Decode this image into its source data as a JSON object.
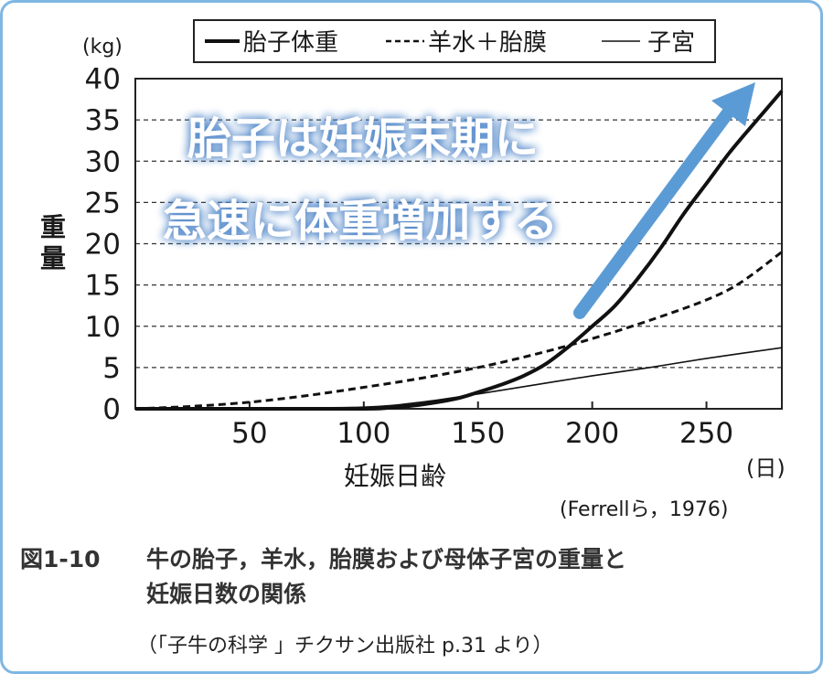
{
  "chart_data": {
    "type": "line",
    "yunit": "(kg)",
    "xunit": "(日)",
    "ylabel": "重量",
    "xlabel": "妊娠日齢",
    "xlim": [
      0,
      283
    ],
    "ylim": [
      0,
      40
    ],
    "yticks": [
      0,
      5,
      10,
      15,
      20,
      25,
      30,
      35,
      40
    ],
    "xticks": [
      50,
      100,
      150,
      200,
      250
    ],
    "grid": "horizontal dashed",
    "legend_position": "top",
    "series": [
      {
        "name": "胎子体重",
        "style": "thick-solid",
        "x": [
          0,
          50,
          100,
          110,
          125,
          140,
          150,
          160,
          170,
          180,
          190,
          200,
          210,
          220,
          230,
          240,
          250,
          260,
          270,
          283
        ],
        "y": [
          0,
          0,
          0,
          0.1,
          0.5,
          1.2,
          2.0,
          2.9,
          4.0,
          5.5,
          7.6,
          10.0,
          12.5,
          15.8,
          19.5,
          23.6,
          27.3,
          31.0,
          34.3,
          38.5
        ]
      },
      {
        "name": "羊水＋胎膜",
        "style": "thick-dashed",
        "x": [
          0,
          25,
          50,
          75,
          100,
          125,
          150,
          175,
          200,
          225,
          250,
          265,
          283
        ],
        "y": [
          0,
          0.3,
          0.8,
          1.6,
          2.6,
          3.7,
          5.0,
          6.6,
          8.5,
          10.7,
          13.2,
          15.3,
          19.0
        ]
      },
      {
        "name": "子宮",
        "style": "thin-solid",
        "x": [
          0,
          50,
          100,
          125,
          150,
          175,
          200,
          225,
          250,
          283
        ],
        "y": [
          0,
          0.1,
          0.2,
          0.8,
          1.8,
          2.9,
          4.0,
          5.0,
          6.1,
          7.4
        ]
      }
    ],
    "source": "(Ferrellら，1976)"
  },
  "annotation": {
    "line1": "胎子は妊娠末期に",
    "line2": "急速に体重増加する",
    "arrow_color": "#5b9bd5",
    "text_color": "#ffffff",
    "glow_color": "#5b8fd0"
  },
  "caption": {
    "figure_no": "図1-10",
    "line1": "牛の胎子，羊水，胎膜および母体子宮の重量と",
    "line2": "妊娠日数の関係"
  },
  "credit": "（「子牛の科学 」チクサン出版社 p.31 より）"
}
